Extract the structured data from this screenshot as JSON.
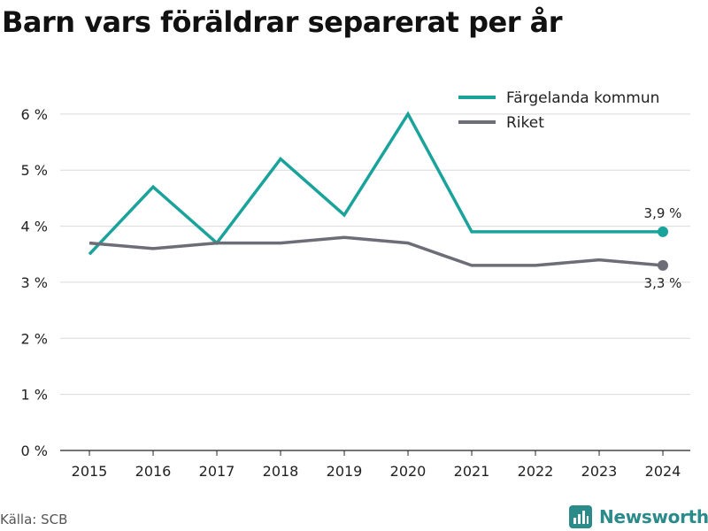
{
  "chart_data": {
    "type": "line",
    "title": "Barn vars föräldrar separerat per år",
    "xlabel": "",
    "ylabel": "",
    "x": [
      "2015",
      "2016",
      "2017",
      "2018",
      "2019",
      "2020",
      "2021",
      "2022",
      "2023",
      "2024"
    ],
    "yticks": [
      "0 %",
      "1 %",
      "2 %",
      "3 %",
      "4 %",
      "5 %",
      "6 %"
    ],
    "ylim": [
      0,
      6.85
    ],
    "grid": true,
    "legend_position": "top-right",
    "series": [
      {
        "name": "Färgelanda kommun",
        "color": "#1aa39a",
        "values": [
          3.5,
          4.7,
          3.7,
          5.2,
          4.2,
          6.0,
          3.9,
          3.9,
          3.9,
          3.9
        ],
        "end_label": "3,9 %"
      },
      {
        "name": "Riket",
        "color": "#6d6d78",
        "values": [
          3.7,
          3.6,
          3.7,
          3.7,
          3.8,
          3.7,
          3.3,
          3.3,
          3.4,
          3.3
        ],
        "end_label": "3,3 %"
      }
    ]
  },
  "footer": {
    "source": "Källa: SCB",
    "brand": "Newsworthy"
  },
  "colors": {
    "grid": "#d9d9d9",
    "axis": "#222222",
    "brand": "#2b8a8a"
  }
}
